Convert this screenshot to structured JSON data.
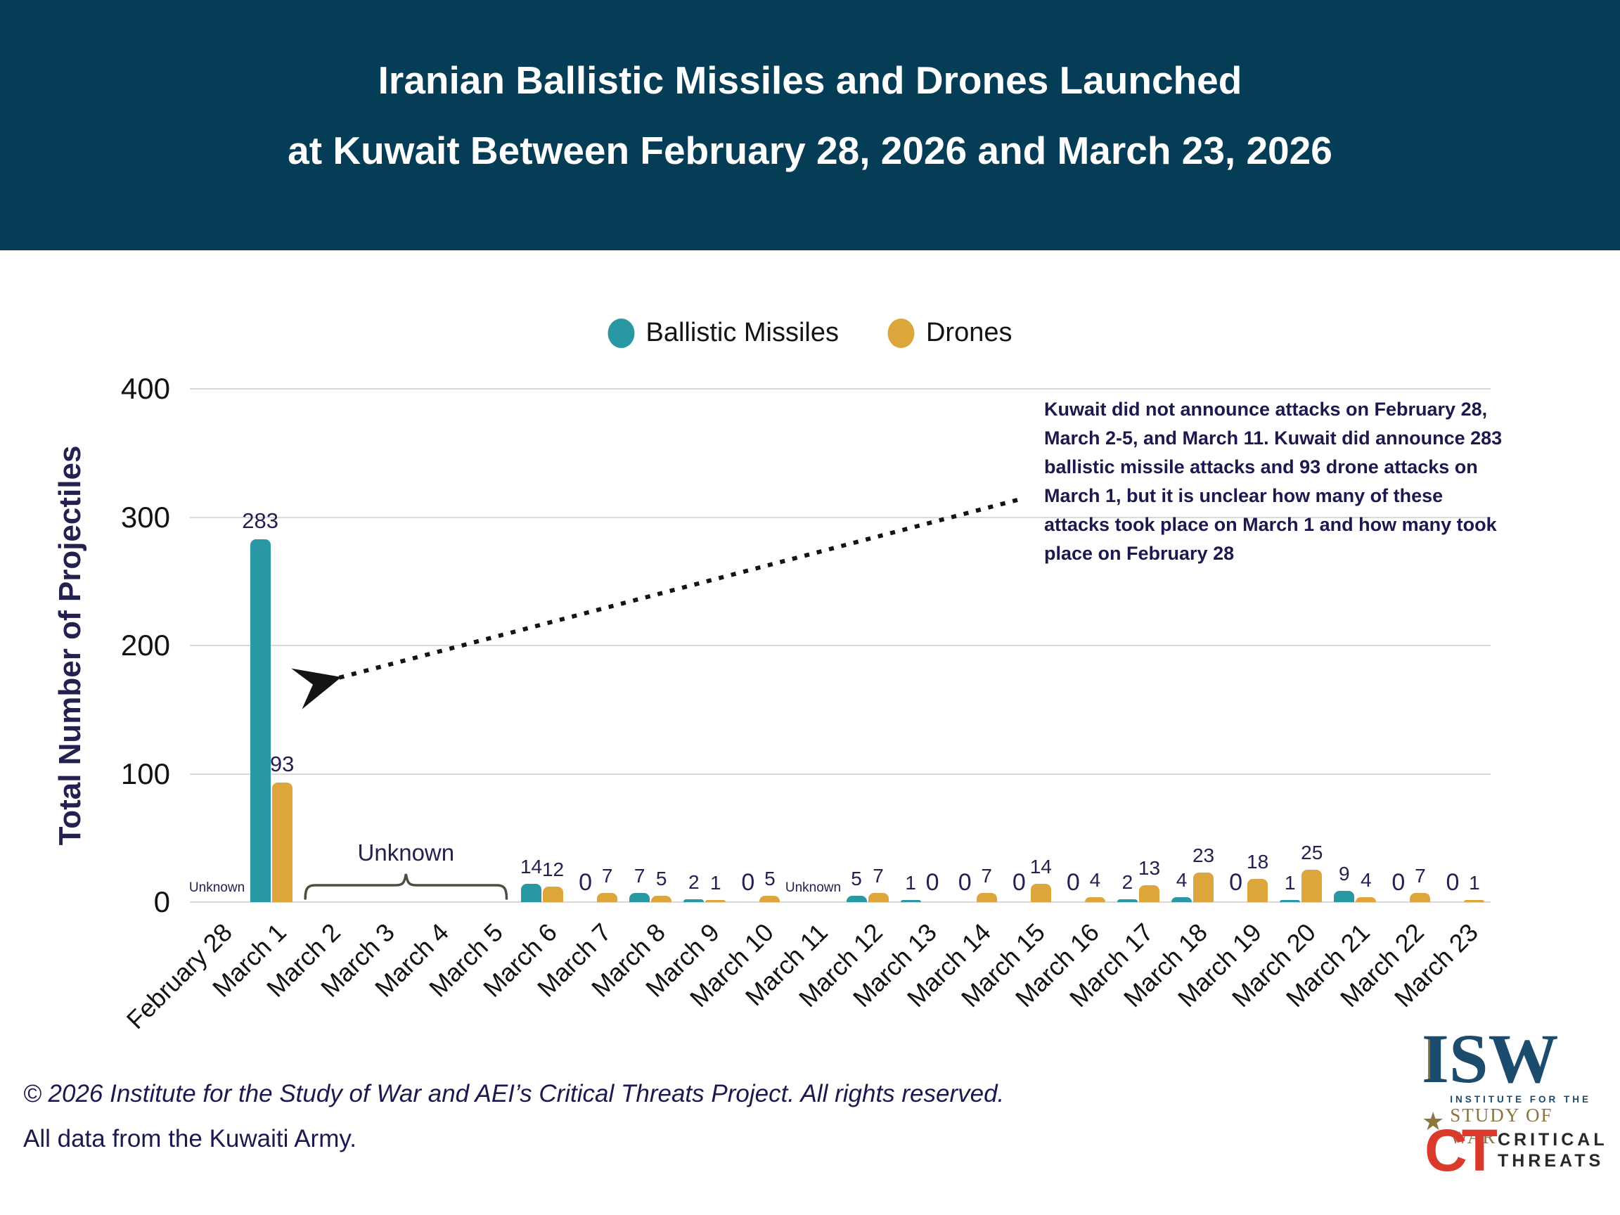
{
  "header": {
    "title_line1": "Iranian Ballistic Missiles and Drones Launched",
    "title_line2": "at Kuwait Between February 28, 2026 and March 23, 2026"
  },
  "colors": {
    "banner": "#063D56",
    "ballistic_missiles": "#2A98A4",
    "drones": "#DDA63D",
    "navy_text": "#23214F",
    "gridline": "#D9D9D9"
  },
  "legend": [
    {
      "label": "Ballistic Missiles",
      "color": "#2A98A4"
    },
    {
      "label": "Drones",
      "color": "#DDA63D"
    }
  ],
  "chart_data": {
    "type": "bar",
    "title": "Iranian Ballistic Missiles and Drones Launched at Kuwait Between February 28, 2026 and March 23, 2026",
    "xlabel": "",
    "ylabel": "Total Number of Projectiles",
    "ylim": [
      0,
      400
    ],
    "yticks": [
      0,
      100,
      200,
      300,
      400
    ],
    "grid": true,
    "legend_position": "top",
    "categories": [
      "February 28",
      "March 1",
      "March 2",
      "March 3",
      "March 4",
      "March 5",
      "March 6",
      "March 7",
      "March 8",
      "March 9",
      "March 10",
      "March 11",
      "March 12",
      "March 13",
      "March 14",
      "March 15",
      "March 16",
      "March 17",
      "March 18",
      "March 19",
      "March 20",
      "March 21",
      "March 22",
      "March 23"
    ],
    "series": [
      {
        "name": "Ballistic Missiles",
        "color": "#2A98A4",
        "values": [
          null,
          283,
          null,
          null,
          null,
          null,
          14,
          0,
          7,
          2,
          0,
          null,
          5,
          1,
          0,
          0,
          0,
          2,
          4,
          0,
          1,
          9,
          0,
          0
        ]
      },
      {
        "name": "Drones",
        "color": "#DDA63D",
        "values": [
          null,
          93,
          null,
          null,
          null,
          null,
          12,
          7,
          5,
          1,
          5,
          null,
          7,
          0,
          7,
          14,
          4,
          13,
          23,
          18,
          25,
          4,
          7,
          1
        ]
      }
    ],
    "unknowns": {
      "label": "Unknown",
      "small": [
        "February 28",
        "March 11"
      ],
      "brace_span": [
        "March 2",
        "March 5"
      ]
    },
    "annotation": "Kuwait did not announce attacks on February 28, March 2-5, and March 11. Kuwait did announce 283 ballistic missile attacks and 93 drone attacks on March 1, but it is unclear how many of these attacks took place on March 1 and how many took place on February 28"
  },
  "footer": {
    "copyright": "© 2026 Institute for the Study of War and AEI’s Critical Threats Project. All rights reserved.",
    "source": "All data from the Kuwaiti Army."
  },
  "logos": {
    "isw": {
      "acronym": "ISW",
      "line1": "INSTITUTE FOR THE",
      "line2": "STUDY OF WAR"
    },
    "ct": {
      "acronym": "CT",
      "line1": "CRITICAL",
      "line2": "THREATS"
    }
  }
}
